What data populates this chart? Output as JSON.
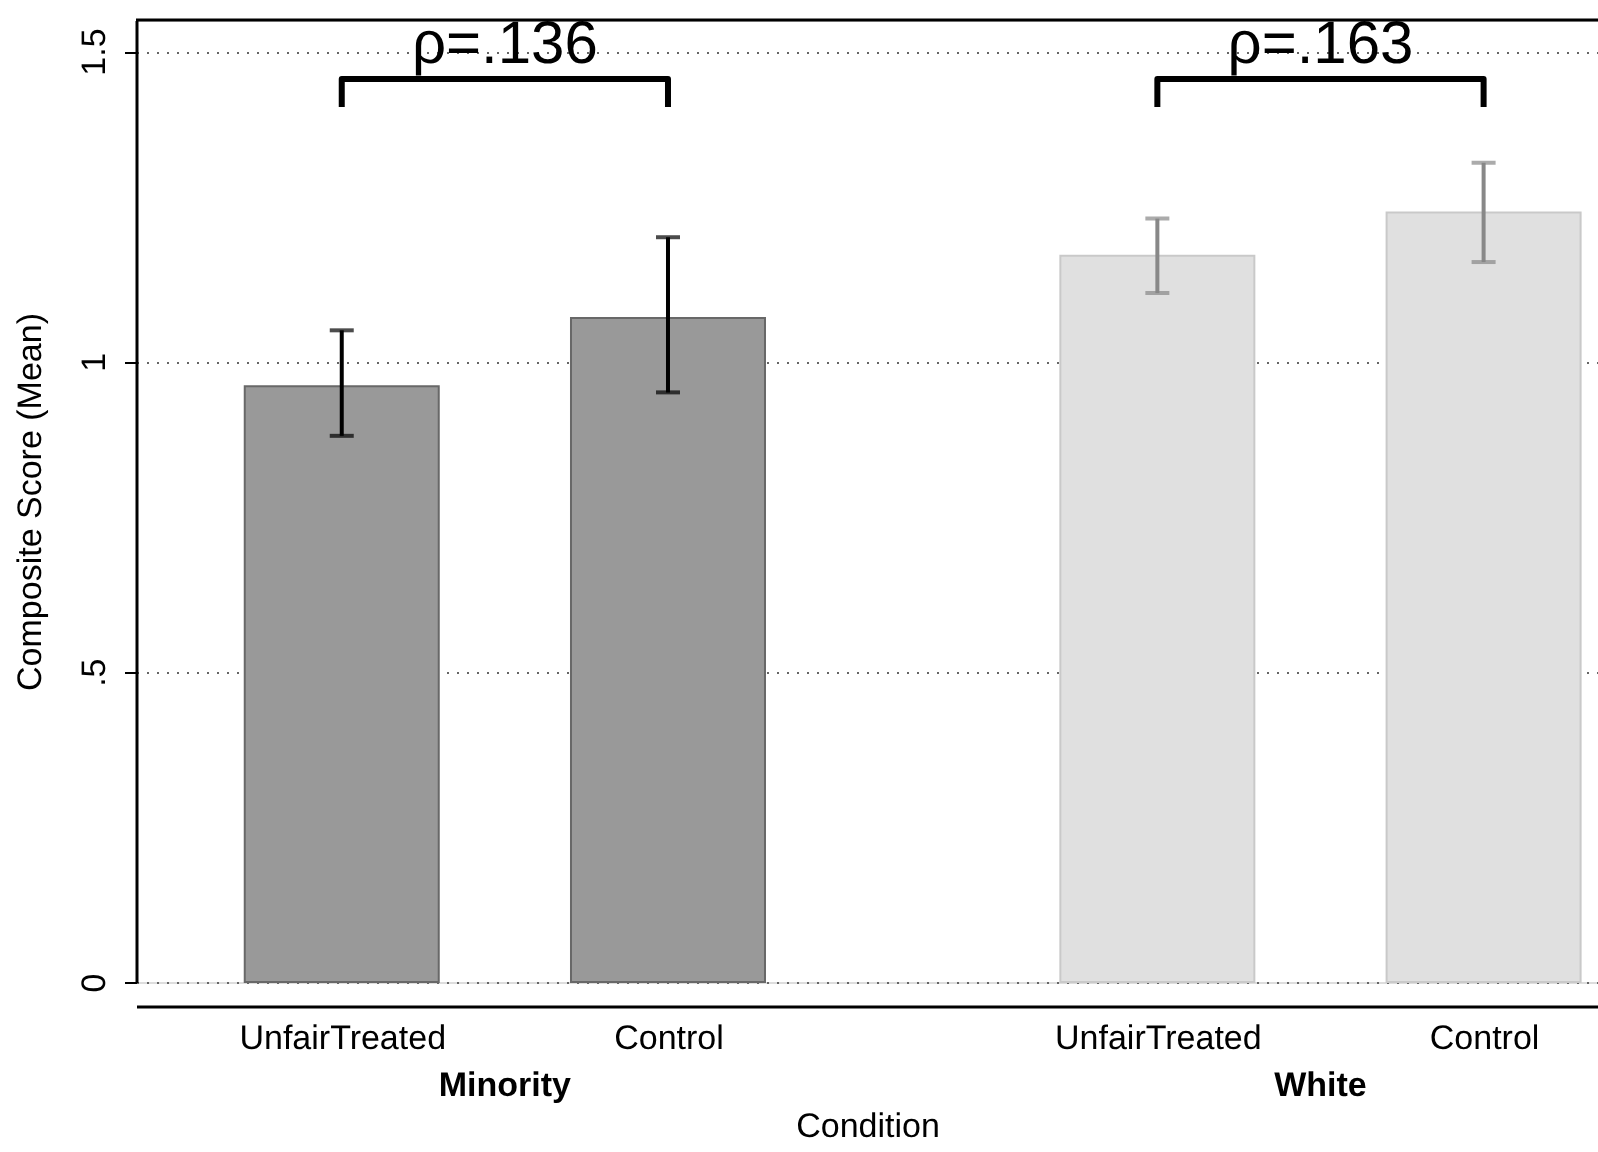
{
  "chart_data": {
    "type": "bar",
    "xlabel": "Condition",
    "ylabel": "Composite Score (Mean)",
    "categories": [
      "UnfairTreated",
      "Control",
      "UnfairTreated",
      "Control"
    ],
    "series": [
      {
        "name": "Minority",
        "color": "#999999",
        "values": [
          0.96,
          1.07,
          null,
          null
        ],
        "errors": [
          [
            0.88,
            1.05
          ],
          [
            0.95,
            1.2
          ],
          null,
          null
        ]
      },
      {
        "name": "White",
        "color": "#e0e0e0",
        "values": [
          null,
          null,
          1.17,
          1.24
        ],
        "errors": [
          null,
          null,
          [
            1.11,
            1.23
          ],
          [
            1.16,
            1.32
          ]
        ]
      }
    ],
    "ylim": [
      0,
      1.55
    ],
    "yticks": [
      0,
      {
        "value": 0.5,
        "label": ".5"
      },
      1,
      1.5
    ],
    "grid": "y",
    "annotations": [
      "ρ=.136",
      "ρ=.163"
    ]
  }
}
